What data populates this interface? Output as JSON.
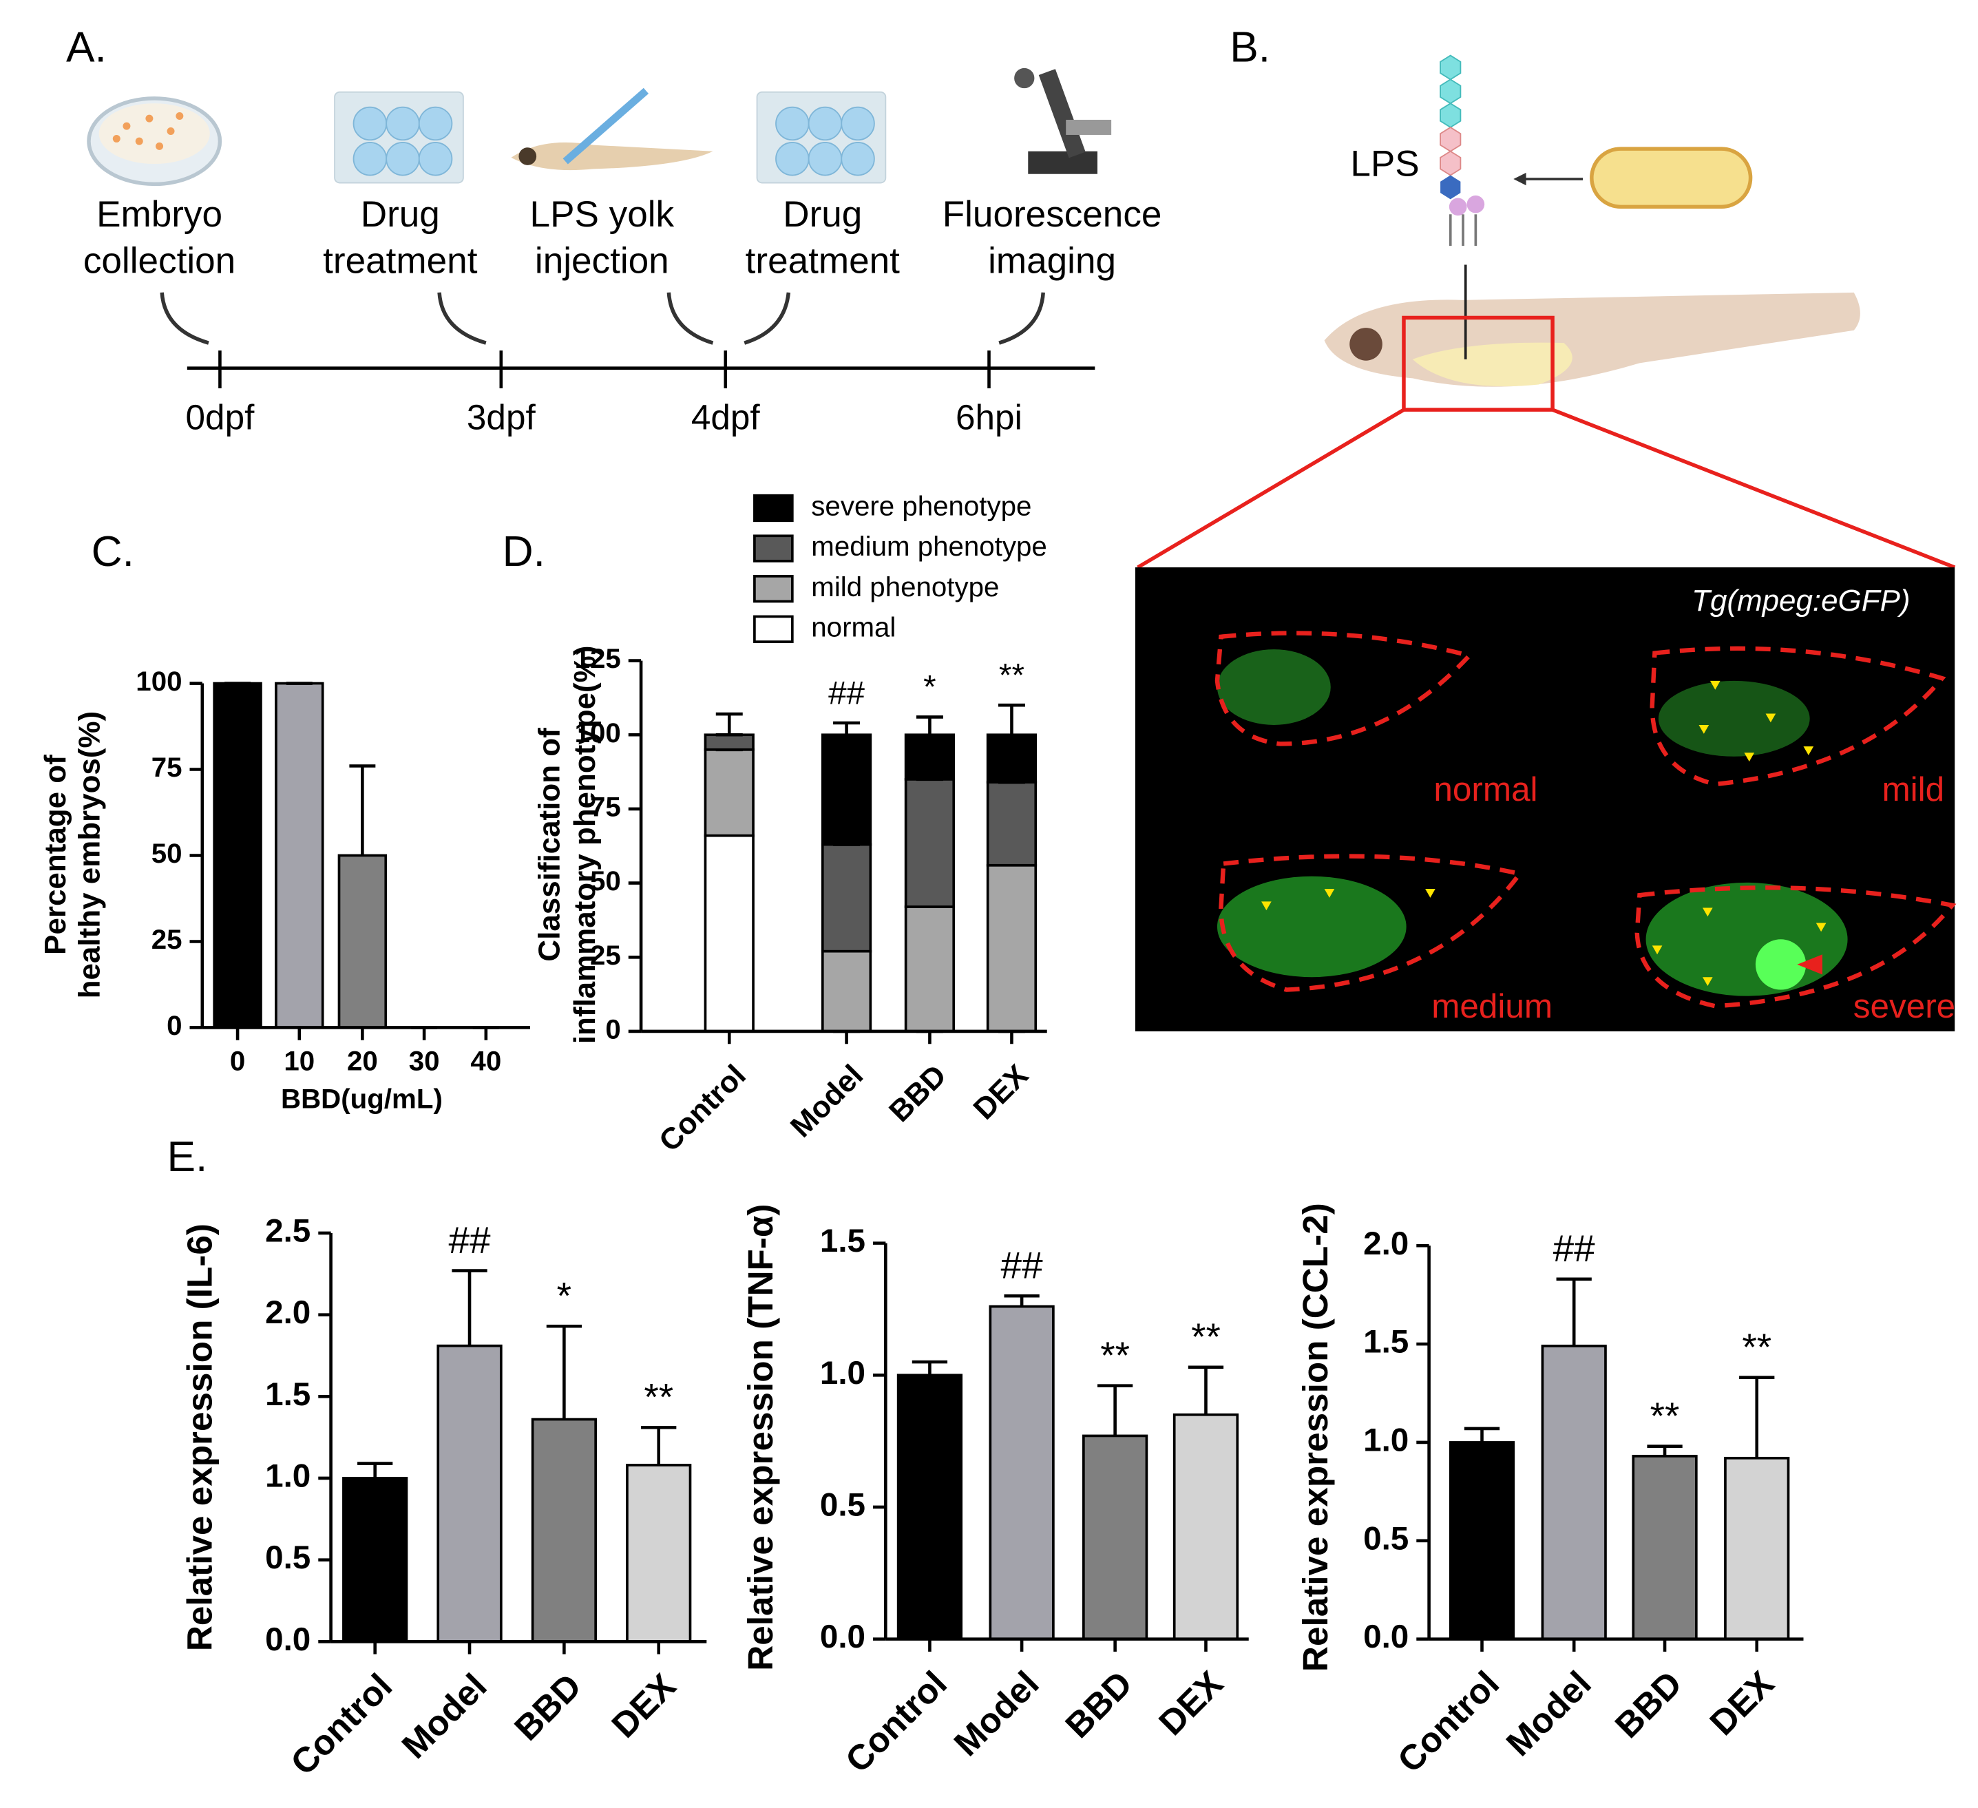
{
  "panel_labels": [
    "A.",
    "B.",
    "C.",
    "D.",
    "E."
  ],
  "timeline": {
    "steps": [
      [
        "Embryo",
        "collection"
      ],
      [
        "Drug",
        "treatment"
      ],
      [
        "LPS yolk",
        "injection"
      ],
      [
        "Drug",
        "treatment"
      ],
      [
        "Fluorescence",
        "imaging"
      ]
    ],
    "ticks": [
      "0dpf",
      "3dpf",
      "4dpf",
      "6hpi"
    ]
  },
  "schematic": {
    "lps": "LPS",
    "imaging_title": "Tg(mpeg:eGFP)",
    "phenotypes": [
      "normal",
      "mild",
      "medium",
      "severe"
    ]
  },
  "chart_data": [
    {
      "type": "bar",
      "ylabel": [
        "Percentage of",
        "healthy embryos(%)"
      ],
      "xlabel": "BBD(ug/mL)",
      "categories": [
        "0",
        "10",
        "20",
        "30",
        "40"
      ],
      "values": [
        100,
        100,
        50,
        0,
        0
      ],
      "errors": [
        0,
        0,
        26,
        0,
        0
      ],
      "colors": [
        "#000000",
        "#a3a3ab",
        "#808080",
        "#808080",
        "#808080"
      ],
      "ylim": [
        0,
        100
      ],
      "yticks": [
        0,
        25,
        50,
        75,
        100
      ]
    },
    {
      "type": "stacked_bar",
      "ylabel": [
        "Classification of",
        "inflammatory phenotype(%)"
      ],
      "categories": [
        "Control",
        "Model",
        "BBD",
        "DEX"
      ],
      "series": [
        {
          "name": "normal",
          "color": "#ffffff",
          "values": [
            66,
            0,
            0,
            0
          ],
          "errors": [
            17,
            0,
            0,
            0
          ]
        },
        {
          "name": "mild phenotype",
          "color": "#a6a6a6",
          "values": [
            29,
            27,
            42,
            56
          ],
          "errors": [
            0,
            11,
            9,
            7
          ]
        },
        {
          "name": "medium phenotype",
          "color": "#595959",
          "values": [
            5,
            36,
            43,
            28
          ],
          "errors": [
            7,
            0,
            0,
            0
          ]
        },
        {
          "name": "severe phenotype",
          "color": "#000000",
          "values": [
            0,
            37,
            15,
            16
          ],
          "errors": [
            0,
            4,
            6,
            10
          ]
        }
      ],
      "annotations": [
        {
          "category": "Model",
          "text": "##"
        },
        {
          "category": "BBD",
          "text": "*"
        },
        {
          "category": "DEX",
          "text": "**"
        }
      ],
      "ylim": [
        0,
        125
      ],
      "yticks": [
        0,
        25,
        50,
        75,
        100,
        125
      ]
    },
    {
      "type": "bar",
      "ylabel": [
        "Relative expression  (IL-6)"
      ],
      "categories": [
        "Control",
        "Model",
        "BBD",
        "DEX"
      ],
      "values": [
        1.0,
        1.81,
        1.36,
        1.08
      ],
      "errors": [
        0.09,
        0.46,
        0.57,
        0.23
      ],
      "colors": [
        "#000000",
        "#a3a3ab",
        "#808080",
        "#d3d3d3"
      ],
      "annotations": [
        {
          "category": "Model",
          "text": "##"
        },
        {
          "category": "BBD",
          "text": "*"
        },
        {
          "category": "DEX",
          "text": "**"
        }
      ],
      "ylim": [
        0,
        2.5
      ],
      "yticks": [
        {
          "value": 0,
          "label": "0.0"
        },
        {
          "value": 0.5,
          "label": "0.5"
        },
        {
          "value": 1,
          "label": "1.0"
        },
        {
          "value": 1.5,
          "label": "1.5"
        },
        {
          "value": 2,
          "label": "2.0"
        },
        {
          "value": 2.5,
          "label": "2.5"
        }
      ]
    },
    {
      "type": "bar",
      "ylabel": [
        "Relative expression (TNF-α)"
      ],
      "categories": [
        "Control",
        "Model",
        "BBD",
        "DEX"
      ],
      "values": [
        1.0,
        1.26,
        0.77,
        0.85
      ],
      "errors": [
        0.05,
        0.04,
        0.19,
        0.18
      ],
      "colors": [
        "#000000",
        "#a3a3ab",
        "#808080",
        "#d3d3d3"
      ],
      "annotations": [
        {
          "category": "Model",
          "text": "##"
        },
        {
          "category": "BBD",
          "text": "**"
        },
        {
          "category": "DEX",
          "text": "**"
        }
      ],
      "ylim": [
        0,
        1.5
      ],
      "yticks": [
        {
          "value": 0,
          "label": "0.0"
        },
        {
          "value": 0.5,
          "label": "0.5"
        },
        {
          "value": 1,
          "label": "1.0"
        },
        {
          "value": 1.5,
          "label": "1.5"
        }
      ]
    },
    {
      "type": "bar",
      "ylabel": [
        "Relative expression (CCL-2)"
      ],
      "categories": [
        "Control",
        "Model",
        "BBD",
        "DEX"
      ],
      "values": [
        1.0,
        1.49,
        0.93,
        0.92
      ],
      "errors": [
        0.07,
        0.34,
        0.05,
        0.41
      ],
      "colors": [
        "#000000",
        "#a3a3ab",
        "#808080",
        "#d3d3d3"
      ],
      "annotations": [
        {
          "category": "Model",
          "text": "##"
        },
        {
          "category": "BBD",
          "text": "**"
        },
        {
          "category": "DEX",
          "text": "**"
        }
      ],
      "ylim": [
        0,
        2
      ],
      "yticks": [
        {
          "value": 0,
          "label": "0.0"
        },
        {
          "value": 0.5,
          "label": "0.5"
        },
        {
          "value": 1,
          "label": "1.0"
        },
        {
          "value": 1.5,
          "label": "1.5"
        },
        {
          "value": 2,
          "label": "2.0"
        }
      ]
    }
  ]
}
